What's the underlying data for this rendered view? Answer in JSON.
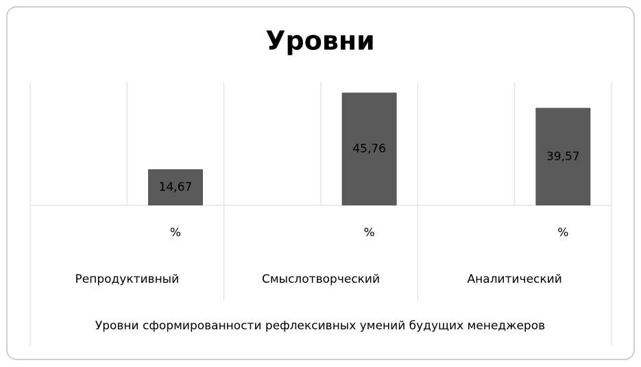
{
  "chart_data": {
    "type": "bar",
    "title": "Уровни",
    "x_axis_label": "Уровни сформированности рефлексивных умений будущих менеджеров",
    "groups": [
      "Репродуктивный",
      "Смыслотворческий",
      "Аналитический"
    ],
    "categories": [
      null,
      "%",
      null,
      "%",
      null,
      "%"
    ],
    "values": [
      null,
      14.67,
      null,
      45.76,
      null,
      39.57
    ],
    "value_labels": [
      null,
      "14,67",
      null,
      "45,76",
      null,
      "39,57"
    ],
    "color": "#595959",
    "ylim": [
      0,
      50
    ]
  }
}
